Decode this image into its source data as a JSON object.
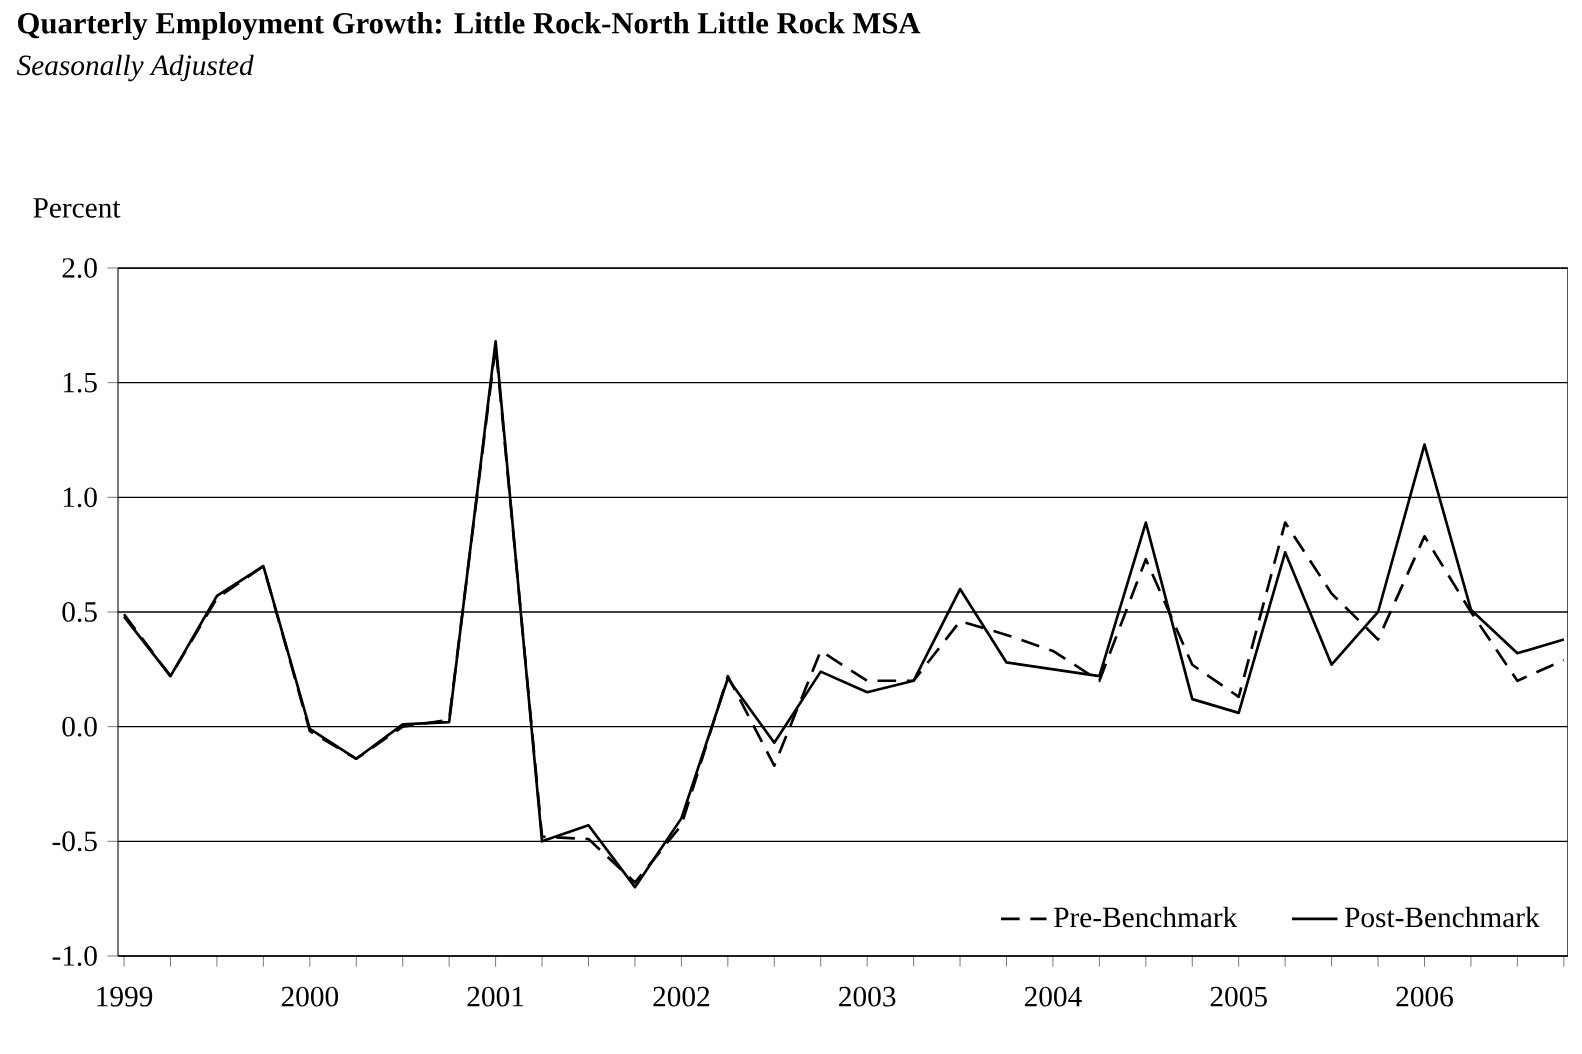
{
  "chart_data": {
    "type": "line",
    "title": "Quarterly Employment Growth:  Little Rock-North Little Rock MSA",
    "subtitle": "Seasonally Adjusted",
    "ylabel": "Percent",
    "categories": [
      "1999",
      null,
      null,
      null,
      "2000",
      null,
      null,
      null,
      "2001",
      null,
      null,
      null,
      "2002",
      null,
      null,
      null,
      "2003",
      null,
      null,
      null,
      "2004",
      null,
      null,
      null,
      "2005",
      null,
      null,
      null,
      "2006",
      null,
      null,
      null
    ],
    "series": [
      {
        "name": "Pre-Benchmark",
        "color": "#000000",
        "line_style": "dashed",
        "values": [
          0.49,
          0.22,
          0.56,
          0.7,
          -0.02,
          -0.14,
          0.0,
          0.03,
          1.66,
          -0.48,
          -0.49,
          -0.68,
          -0.43,
          0.22,
          -0.17,
          0.33,
          0.2,
          0.2,
          0.46,
          0.4,
          0.33,
          0.2,
          0.73,
          0.27,
          0.13,
          0.89,
          0.58,
          0.38,
          0.83,
          0.5,
          0.2,
          0.29
        ]
      },
      {
        "name": "Post-Benchmark",
        "color": "#000000",
        "line_style": "solid",
        "values": [
          0.48,
          0.22,
          0.57,
          0.7,
          -0.01,
          -0.14,
          0.01,
          0.02,
          1.68,
          -0.5,
          -0.43,
          -0.7,
          -0.4,
          0.21,
          -0.07,
          0.24,
          0.15,
          0.2,
          0.6,
          0.28,
          0.25,
          0.22,
          0.89,
          0.12,
          0.06,
          0.76,
          0.27,
          0.5,
          1.23,
          0.51,
          0.32,
          0.38
        ]
      }
    ],
    "ylim": [
      -1.0,
      2.0
    ],
    "yticks": [
      {
        "value": -1.0,
        "label": "-1.0"
      },
      {
        "value": -0.5,
        "label": "-0.5"
      },
      {
        "value": 0.0,
        "label": "0.0"
      },
      {
        "value": 0.5,
        "label": "0.5"
      },
      {
        "value": 1.0,
        "label": "1.0"
      },
      {
        "value": 1.5,
        "label": "1.5"
      },
      {
        "value": 2.0,
        "label": "2.0"
      }
    ],
    "grid": "y",
    "legend": "bottom right",
    "marker": "none"
  }
}
